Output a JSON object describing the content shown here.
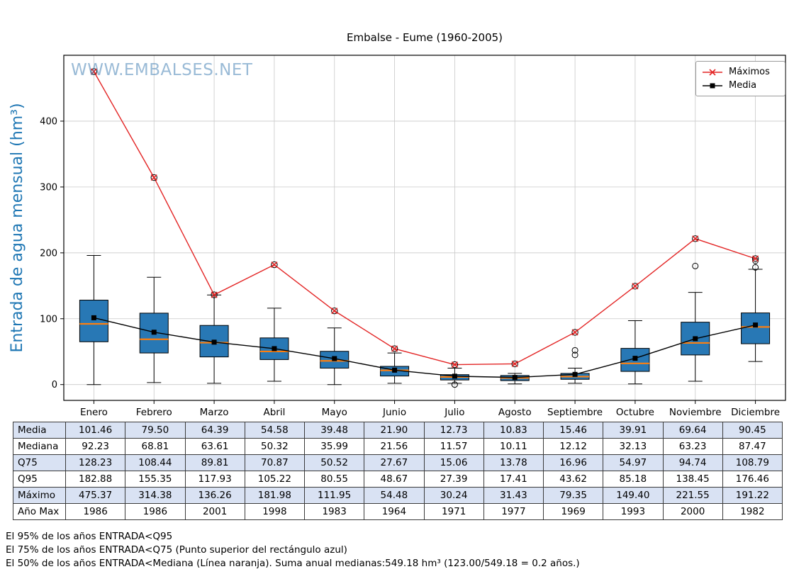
{
  "title": "Embalse - Eume (1960-2005)",
  "watermark": "WWW.EMBALSES.NET",
  "ylabel": "Entrada de agua mensual (hm³)",
  "legend": {
    "maximos": "Máximos",
    "media": "Media"
  },
  "colors": {
    "box_fill": "#2878b5",
    "median_line": "#ff7f0e",
    "max_line": "#e32525",
    "mean_line": "#000000",
    "grid": "#c9c9c9",
    "ylabel_blue": "#1f77b4",
    "table_shade": "#d9e2f3"
  },
  "chart_data": {
    "type": "boxplot+line",
    "categories": [
      "Enero",
      "Febrero",
      "Marzo",
      "Abril",
      "Mayo",
      "Junio",
      "Julio",
      "Agosto",
      "Septiembre",
      "Octubre",
      "Noviembre",
      "Diciembre"
    ],
    "series": [
      {
        "name": "Máximos",
        "values": [
          475.37,
          314.38,
          136.26,
          181.98,
          111.95,
          54.48,
          30.24,
          31.43,
          79.35,
          149.4,
          221.55,
          191.22
        ]
      },
      {
        "name": "Media",
        "values": [
          101.46,
          79.5,
          64.39,
          54.58,
          39.48,
          21.9,
          12.73,
          10.83,
          15.46,
          39.91,
          69.64,
          90.45
        ]
      }
    ],
    "box": {
      "q1": [
        65,
        48,
        42,
        38,
        25,
        13,
        7,
        6,
        8,
        20,
        45,
        62
      ],
      "median": [
        92.23,
        68.81,
        63.61,
        50.32,
        35.99,
        21.56,
        11.57,
        10.11,
        12.12,
        32.13,
        63.23,
        87.47
      ],
      "q3": [
        128.23,
        108.44,
        89.81,
        70.87,
        50.52,
        27.67,
        15.06,
        13.78,
        16.96,
        54.97,
        94.74,
        108.79
      ],
      "whisker_low": [
        0,
        3,
        2,
        5,
        0,
        2,
        2,
        1,
        2,
        1,
        5,
        35
      ],
      "whisker_high": [
        196,
        163,
        136,
        116,
        86,
        48,
        25,
        17,
        25,
        97,
        140,
        175
      ],
      "outliers": [
        [],
        [],
        [],
        [],
        [],
        [],
        [
          0
        ],
        [],
        [
          45,
          52
        ],
        [],
        [
          180
        ],
        [
          178,
          188
        ]
      ]
    },
    "title": "Embalse - Eume (1960-2005)",
    "xlabel": "",
    "ylabel": "Entrada de agua mensual (hm³)",
    "ylim": [
      -24,
      500
    ],
    "yticks": [
      0,
      100,
      200,
      300,
      400
    ],
    "grid": true,
    "legend_position": "upper right"
  },
  "table": {
    "row_headers": [
      "Media",
      "Mediana",
      "Q75",
      "Q95",
      "Máximo",
      "Año Max"
    ],
    "rows": [
      [
        "101.46",
        "79.50",
        "64.39",
        "54.58",
        "39.48",
        "21.90",
        "12.73",
        "10.83",
        "15.46",
        "39.91",
        "69.64",
        "90.45"
      ],
      [
        "92.23",
        "68.81",
        "63.61",
        "50.32",
        "35.99",
        "21.56",
        "11.57",
        "10.11",
        "12.12",
        "32.13",
        "63.23",
        "87.47"
      ],
      [
        "128.23",
        "108.44",
        "89.81",
        "70.87",
        "50.52",
        "27.67",
        "15.06",
        "13.78",
        "16.96",
        "54.97",
        "94.74",
        "108.79"
      ],
      [
        "182.88",
        "155.35",
        "117.93",
        "105.22",
        "80.55",
        "48.67",
        "27.39",
        "17.41",
        "43.62",
        "85.18",
        "138.45",
        "176.46"
      ],
      [
        "475.37",
        "314.38",
        "136.26",
        "181.98",
        "111.95",
        "54.48",
        "30.24",
        "31.43",
        "79.35",
        "149.40",
        "221.55",
        "191.22"
      ],
      [
        "1986",
        "1986",
        "2001",
        "1998",
        "1983",
        "1964",
        "1971",
        "1977",
        "1969",
        "1993",
        "2000",
        "1982"
      ]
    ]
  },
  "footnotes": [
    "El 95% de los años ENTRADA<Q95",
    "El 75% de los años ENTRADA<Q75 (Punto superior del rectángulo azul)",
    " El 50% de los años ENTRADA<Mediana (Línea naranja). Suma anual medianas:549.18 hm³ (123.00/549.18 = 0.2 años.)"
  ]
}
